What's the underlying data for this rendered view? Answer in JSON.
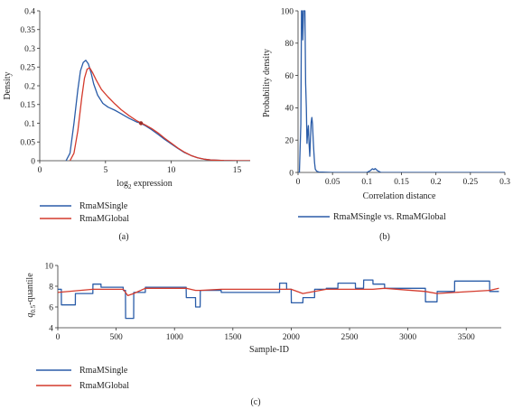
{
  "colors": {
    "rma_single": "#2a5ca8",
    "rma_global": "#d43a2c",
    "axis": "#333333"
  },
  "chart_data": [
    {
      "panel": "(a)",
      "type": "line",
      "xlabel": "log",
      "xlabel_sub": "2",
      "xlabel_rest": " expression",
      "ylabel": "Density",
      "xlim": [
        0,
        16
      ],
      "ylim": [
        0,
        0.4
      ],
      "xticks": [
        "0",
        "5",
        "10",
        "15"
      ],
      "yticks": [
        "0",
        "0.05",
        "0.1",
        "0.15",
        "0.2",
        "0.25",
        "0.3",
        "0.35",
        "0.4"
      ],
      "series": [
        {
          "name": "RmaMSingle",
          "color": "#2a5ca8",
          "x": [
            2.0,
            2.3,
            2.6,
            2.9,
            3.1,
            3.3,
            3.5,
            3.7,
            3.9,
            4.1,
            4.4,
            4.8,
            5.2,
            5.7,
            6.2,
            6.8,
            7.4,
            7.7,
            8.0,
            8.5,
            9.0,
            9.5,
            10.0,
            10.5,
            11.0,
            11.5,
            12.0,
            12.5,
            13.0,
            14.0,
            15.0,
            16.0
          ],
          "y": [
            0.0,
            0.02,
            0.1,
            0.19,
            0.24,
            0.262,
            0.268,
            0.258,
            0.235,
            0.205,
            0.175,
            0.153,
            0.143,
            0.135,
            0.125,
            0.113,
            0.103,
            0.1,
            0.094,
            0.083,
            0.07,
            0.057,
            0.045,
            0.033,
            0.022,
            0.014,
            0.008,
            0.004,
            0.002,
            0.0005,
            0.0001,
            0.0
          ]
        },
        {
          "name": "RmaMGlobal",
          "color": "#d43a2c",
          "x": [
            2.3,
            2.6,
            2.9,
            3.2,
            3.4,
            3.6,
            3.8,
            4.0,
            4.3,
            4.7,
            5.2,
            5.7,
            6.2,
            6.8,
            7.4,
            7.7,
            8.0,
            8.5,
            9.0,
            9.5,
            10.0,
            10.5,
            11.0,
            11.5,
            12.0,
            12.5,
            13.0,
            14.0,
            15.0,
            16.0
          ],
          "y": [
            0.0,
            0.02,
            0.08,
            0.17,
            0.22,
            0.244,
            0.248,
            0.236,
            0.215,
            0.19,
            0.17,
            0.152,
            0.136,
            0.12,
            0.106,
            0.101,
            0.096,
            0.086,
            0.074,
            0.06,
            0.047,
            0.034,
            0.023,
            0.014,
            0.008,
            0.004,
            0.002,
            0.0005,
            0.0001,
            0.0
          ]
        }
      ],
      "legend_placement": "below"
    },
    {
      "panel": "(b)",
      "type": "line",
      "xlabel": "Correlation distance",
      "ylabel": "Probability density",
      "xlim": [
        0,
        0.3
      ],
      "ylim": [
        0,
        100
      ],
      "xticks": [
        "0",
        "0.05",
        "0.1",
        "0.15",
        "0.2",
        "0.25",
        "0.3"
      ],
      "yticks": [
        "0",
        "20",
        "40",
        "60",
        "80",
        "100"
      ],
      "series": [
        {
          "name": "RmaMSingle vs. RmaMGlobal",
          "color": "#2a5ca8",
          "x": [
            0.0,
            0.002,
            0.004,
            0.005,
            0.006,
            0.007,
            0.008,
            0.009,
            0.01,
            0.011,
            0.012,
            0.013,
            0.014,
            0.015,
            0.016,
            0.017,
            0.018,
            0.019,
            0.02,
            0.021,
            0.022,
            0.023,
            0.024,
            0.025,
            0.027,
            0.03,
            0.035,
            0.05,
            0.1,
            0.105,
            0.108,
            0.11,
            0.112,
            0.115,
            0.12,
            0.3
          ],
          "y": [
            0.0,
            0.0,
            30.0,
            100.0,
            100.0,
            82.0,
            100.0,
            100.0,
            100.0,
            55.0,
            40.0,
            18.0,
            25.0,
            29.0,
            18.0,
            10.0,
            20.0,
            31.0,
            34.0,
            30.0,
            20.0,
            12.0,
            6.0,
            2.0,
            0.8,
            0.3,
            0.2,
            0.0,
            0.0,
            1.2,
            2.3,
            1.8,
            2.4,
            1.2,
            0.0,
            0.0
          ]
        }
      ],
      "legend_placement": "below"
    },
    {
      "panel": "(c)",
      "type": "line",
      "xlabel": "Sample-ID",
      "ylabel_main": "q",
      "ylabel_sub": "0.5",
      "ylabel_rest": "-quantile",
      "xlim": [
        0,
        3800
      ],
      "ylim": [
        4,
        10
      ],
      "xticks": [
        "0",
        "500",
        "1000",
        "1500",
        "2000",
        "2500",
        "3000",
        "3500"
      ],
      "yticks": [
        "4",
        "6",
        "8",
        "10"
      ],
      "series": [
        {
          "name": "RmaMSingle",
          "color": "#2a5ca8",
          "x": [
            0,
            30,
            31,
            150,
            151,
            300,
            301,
            370,
            371,
            560,
            561,
            580,
            581,
            650,
            651,
            750,
            751,
            1100,
            1101,
            1180,
            1181,
            1220,
            1221,
            1400,
            1401,
            1900,
            1901,
            1960,
            1961,
            2000,
            2001,
            2100,
            2101,
            2200,
            2201,
            2300,
            2301,
            2400,
            2401,
            2550,
            2551,
            2620,
            2621,
            2700,
            2701,
            2800,
            2801,
            3150,
            3151,
            3250,
            3251,
            3400,
            3401,
            3700,
            3701,
            3780
          ],
          "y": [
            7.7,
            7.7,
            6.2,
            6.2,
            7.3,
            7.3,
            8.2,
            8.2,
            7.9,
            7.9,
            7.6,
            7.6,
            4.9,
            4.9,
            7.4,
            7.4,
            7.9,
            7.9,
            6.9,
            6.9,
            6.0,
            6.0,
            7.6,
            7.6,
            7.4,
            7.4,
            8.3,
            8.3,
            7.7,
            7.7,
            6.4,
            6.4,
            6.9,
            6.9,
            7.7,
            7.7,
            7.8,
            7.8,
            8.3,
            8.3,
            7.8,
            7.8,
            8.6,
            8.6,
            8.2,
            8.2,
            7.8,
            7.8,
            6.5,
            6.5,
            7.5,
            7.5,
            8.5,
            8.5,
            7.5,
            7.5
          ]
        },
        {
          "name": "RmaMGlobal",
          "color": "#d43a2c",
          "x": [
            0,
            300,
            560,
            600,
            650,
            750,
            1100,
            1180,
            1220,
            1400,
            1900,
            2000,
            2100,
            2300,
            2550,
            2700,
            2800,
            3150,
            3250,
            3400,
            3700,
            3780
          ],
          "y": [
            7.4,
            7.7,
            7.7,
            7.1,
            7.3,
            7.8,
            7.8,
            7.6,
            7.6,
            7.7,
            7.7,
            7.7,
            7.3,
            7.7,
            7.7,
            7.7,
            7.8,
            7.5,
            7.3,
            7.4,
            7.6,
            7.8
          ]
        }
      ],
      "legend_placement": "below-left"
    }
  ]
}
